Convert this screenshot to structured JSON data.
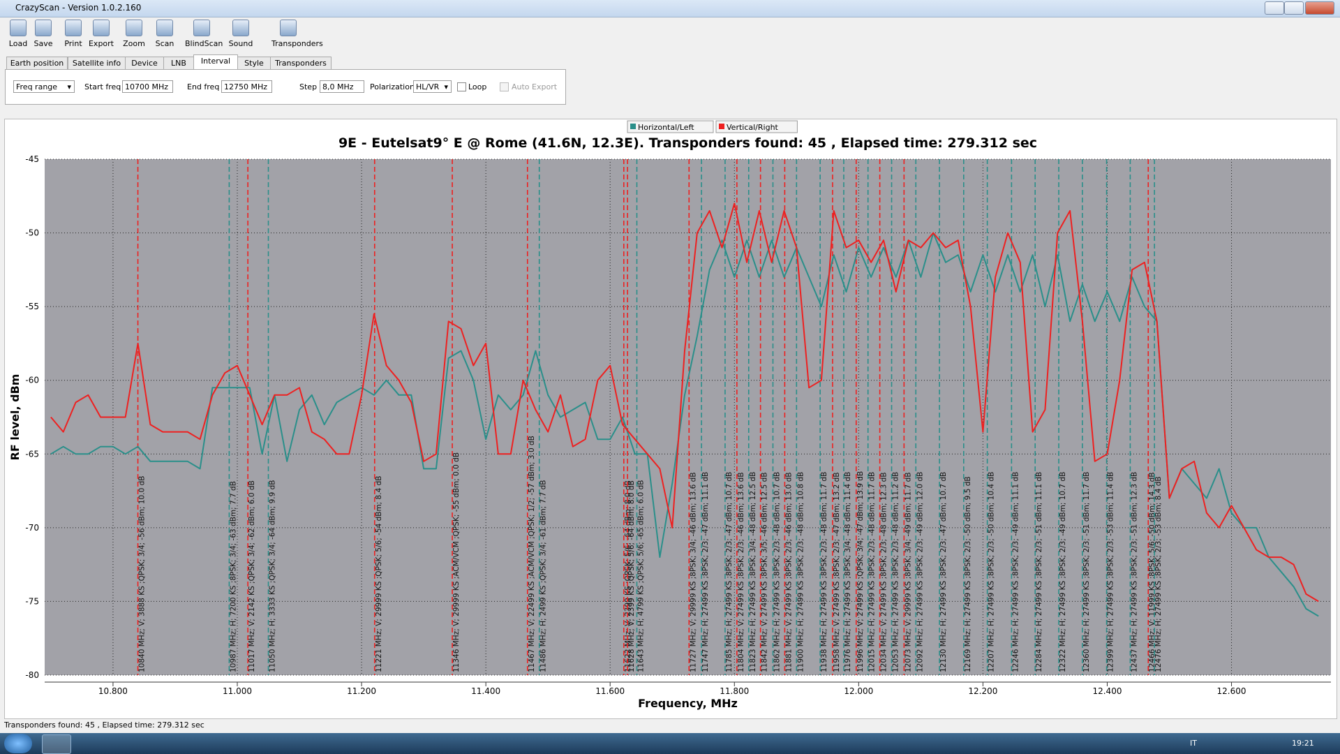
{
  "window": {
    "title": "CrazyScan - Version 1.0.2.160"
  },
  "toolbar": [
    "Load",
    "Save",
    "Print",
    "Export",
    "Zoom",
    "Scan",
    "BlindScan",
    "Sound",
    "Transponders"
  ],
  "tabs": [
    "Earth position",
    "Satellite info",
    "Device",
    "LNB",
    "Interval",
    "Style",
    "Transponders"
  ],
  "active_tab": 4,
  "interval": {
    "mode": "Freq range",
    "start_label": "Start freq",
    "start_value": "10700 MHz",
    "end_label": "End freq",
    "end_value": "12750 MHz",
    "step_label": "Step",
    "step_value": "8,0 MHz",
    "pol_label": "Polarization",
    "pol_value": "HL/VR",
    "loop": "Loop",
    "auto_export": "Auto Export"
  },
  "chart_data": {
    "type": "line",
    "title": "9E - Eutelsat9° E  @ Rome (41.6N, 12.3E). Transponders found: 45 , Elapsed time: 279.312 sec",
    "x_label": "Frequency, MHz",
    "y_label": "RF level, dBm",
    "legend": "top",
    "grid": true,
    "xlim": [
      10.69,
      12.76
    ],
    "ylim": [
      -80,
      -45
    ],
    "xticks": [
      {
        "value": 10.8,
        "label": "10.800"
      },
      {
        "value": 11.0,
        "label": "11.000"
      },
      {
        "value": 11.2,
        "label": "11.200"
      },
      {
        "value": 11.4,
        "label": "11.400"
      },
      {
        "value": 11.6,
        "label": "11.600"
      },
      {
        "value": 11.8,
        "label": "11.800"
      },
      {
        "value": 12.0,
        "label": "12.000"
      },
      {
        "value": 12.2,
        "label": "12.200"
      },
      {
        "value": 12.4,
        "label": "12.400"
      },
      {
        "value": 12.6,
        "label": "12.600"
      }
    ],
    "yticks": [
      -45,
      -50,
      -55,
      -60,
      -65,
      -70,
      -75,
      -80
    ],
    "x": [
      10.7,
      10.72,
      10.74,
      10.76,
      10.78,
      10.8,
      10.82,
      10.84,
      10.86,
      10.88,
      10.9,
      10.92,
      10.94,
      10.96,
      10.98,
      11.0,
      11.02,
      11.04,
      11.06,
      11.08,
      11.1,
      11.12,
      11.14,
      11.16,
      11.18,
      11.2,
      11.22,
      11.24,
      11.26,
      11.28,
      11.3,
      11.32,
      11.34,
      11.36,
      11.38,
      11.4,
      11.42,
      11.44,
      11.46,
      11.48,
      11.5,
      11.52,
      11.54,
      11.56,
      11.58,
      11.6,
      11.62,
      11.64,
      11.66,
      11.68,
      11.7,
      11.72,
      11.74,
      11.76,
      11.78,
      11.8,
      11.82,
      11.84,
      11.86,
      11.88,
      11.9,
      11.92,
      11.94,
      11.96,
      11.98,
      12.0,
      12.02,
      12.04,
      12.06,
      12.08,
      12.1,
      12.12,
      12.14,
      12.16,
      12.18,
      12.2,
      12.22,
      12.24,
      12.26,
      12.28,
      12.3,
      12.32,
      12.34,
      12.36,
      12.38,
      12.4,
      12.42,
      12.44,
      12.46,
      12.48,
      12.5,
      12.52,
      12.54,
      12.56,
      12.58,
      12.6,
      12.62,
      12.64,
      12.66,
      12.68,
      12.7,
      12.72,
      12.74
    ],
    "series": [
      {
        "name": "Horizontal/Left",
        "color": "#2a8f8a",
        "values": [
          -65,
          -64.5,
          -65,
          -65,
          -64.5,
          -64.5,
          -65,
          -64.5,
          -65.5,
          -65.5,
          -65.5,
          -65.5,
          -66,
          -60.5,
          -60.5,
          -60.5,
          -60.5,
          -65,
          -61,
          -65.5,
          -62,
          -61,
          -63,
          -61.5,
          -61,
          -60.5,
          -61,
          -60,
          -61,
          -61,
          -66,
          -66,
          -58.5,
          -58,
          -60,
          -64,
          -61,
          -62,
          -61,
          -58,
          -61,
          -62.5,
          -62,
          -61.5,
          -64,
          -64,
          -62.5,
          -65,
          -65,
          -72,
          -67,
          -61,
          -57,
          -52.5,
          -50.5,
          -53,
          -50.5,
          -53,
          -50.5,
          -53,
          -51,
          -53,
          -55,
          -51.5,
          -54,
          -51,
          -53,
          -51,
          -53,
          -50.5,
          -53,
          -50,
          -52,
          -51.5,
          -54,
          -51.5,
          -54,
          -51.5,
          -54,
          -51.5,
          -55,
          -51.5,
          -56,
          -53.5,
          -56,
          -54,
          -56,
          -53,
          -55,
          -56,
          -68,
          -66,
          -67,
          -68,
          -66,
          -69,
          -70,
          -70,
          -72,
          -73,
          -74,
          -75.5,
          -76
        ]
      },
      {
        "name": "Vertical/Right",
        "color": "#ee2020",
        "values": [
          -62.5,
          -63.5,
          -61.5,
          -61,
          -62.5,
          -62.5,
          -62.5,
          -57.5,
          -63,
          -63.5,
          -63.5,
          -63.5,
          -64,
          -61,
          -59.5,
          -59,
          -61,
          -63,
          -61,
          -61,
          -60.5,
          -63.5,
          -64,
          -65,
          -65,
          -61,
          -55.5,
          -59,
          -60,
          -61.5,
          -65.5,
          -65,
          -56,
          -56.5,
          -59,
          -57.5,
          -65,
          -65,
          -60,
          -62,
          -63.5,
          -61,
          -64.5,
          -64,
          -60,
          -59,
          -63,
          -64,
          -65,
          -66,
          -70,
          -58,
          -50,
          -48.5,
          -51,
          -48,
          -52,
          -48.5,
          -52,
          -48.5,
          -51,
          -60.5,
          -60,
          -48.5,
          -51,
          -50.5,
          -52,
          -50.5,
          -54,
          -50.5,
          -51,
          -50,
          -51,
          -50.5,
          -55,
          -63.5,
          -53,
          -50,
          -52,
          -63.5,
          -62,
          -50,
          -48.5,
          -56,
          -65.5,
          -65,
          -60,
          -52.5,
          -52,
          -56,
          -68,
          -66,
          -65.5,
          -69,
          -70,
          -68.5,
          -70,
          -71.5,
          -72,
          -72,
          -72.5,
          -74.5,
          -75
        ]
      }
    ],
    "transponders": [
      {
        "freq": 10.84,
        "color": "#ee2020",
        "label": "10840 MHz; V; 3888 KS ;QPSK; 3/4; -56 dBm; 10.0 dB"
      },
      {
        "freq": 10.987,
        "color": "#2a8f8a",
        "label": "10987 MHz; H; 7200 KS ;8PSK; 3/4; -63 dBm; 7.7 dB"
      },
      {
        "freq": 11.017,
        "color": "#ee2020",
        "label": "11017 MHz; V; 2142 KS ;QPSK; 3/4; -62 dBm; 6.0 dB"
      },
      {
        "freq": 11.05,
        "color": "#2a8f8a",
        "label": "11050 MHz; H; 3333 KS ;QPSK; 3/4; -64 dBm; 9.9 dB"
      },
      {
        "freq": 11.221,
        "color": "#ee2020",
        "label": "11221 MHz; V; 29999 KS ;QPSK; 5/6; -54 dBm; 8.4 dB"
      },
      {
        "freq": 11.346,
        "color": "#ee2020",
        "label": "11346 MHz; V; 29999 KS ;ACM/VCM ;QPSK; -55 dBm; 0.0 dB"
      },
      {
        "freq": 11.467,
        "color": "#ee2020",
        "label": "11467 MHz; V; 22499 KS ;ACM/VCM ;QPSK; 1/2; -57 dBm; 3.0 dB"
      },
      {
        "freq": 11.486,
        "color": "#2a8f8a",
        "label": "11486 MHz; H; 2499 KS ;QPSK; 3/4; -61 dBm; 7.7 dB"
      },
      {
        "freq": 11.622,
        "color": "#ee2020",
        "label": "11622 MHz; V; 2399 KS ;QPSK; 5/6; -64 dBm; 8.0 dB"
      },
      {
        "freq": 11.628,
        "color": "#ee2020",
        "label": "11628 MHz; V; 2399 KS ;QPSK; 5/6; -64 dBm; 8.0 dB"
      },
      {
        "freq": 11.643,
        "color": "#2a8f8a",
        "label": "11643 MHz; H; 4799 KS ;QPSK; 5/6; -65 dBm; 6.0 dB"
      },
      {
        "freq": 11.727,
        "color": "#ee2020",
        "label": "11727 MHz; V; 29999 KS ;8PSK; 3/4; -46 dBm; 13.6 dB"
      },
      {
        "freq": 11.747,
        "color": "#2a8f8a",
        "label": "11747 MHz; H; 27499 KS ;8PSK; 2/3; -47 dBm; 11.1 dB"
      },
      {
        "freq": 11.785,
        "color": "#2a8f8a",
        "label": "11785 MHz; H; 27499 KS ;8PSK; 2/3; -47 dBm; 10.7 dB"
      },
      {
        "freq": 11.804,
        "color": "#ee2020",
        "label": "11804 MHz; V; 27499 KS ;8PSK; 2/3; -46 dBm; 13.6 dB"
      },
      {
        "freq": 11.823,
        "color": "#2a8f8a",
        "label": "11823 MHz; H; 27499 KS ;8PSK; 3/4; -48 dBm; 12.5 dB"
      },
      {
        "freq": 11.842,
        "color": "#ee2020",
        "label": "11842 MHz; V; 27499 KS ;8PSK; 3/5; -46 dBm; 12.5 dB"
      },
      {
        "freq": 11.862,
        "color": "#2a8f8a",
        "label": "11862 MHz; H; 27499 KS ;8PSK; 2/3; -48 dBm; 10.7 dB"
      },
      {
        "freq": 11.881,
        "color": "#ee2020",
        "label": "11881 MHz; V; 27499 KS ;8PSK; 2/3; -46 dBm; 13.0 dB"
      },
      {
        "freq": 11.9,
        "color": "#2a8f8a",
        "label": "11900 MHz; H; 27499 KS ;8PSK; 2/3; -48 dBm; 10.8 dB"
      },
      {
        "freq": 11.938,
        "color": "#2a8f8a",
        "label": "11938 MHz; H; 27499 KS ;8PSK; 2/3; -48 dBm; 11.7 dB"
      },
      {
        "freq": 11.958,
        "color": "#ee2020",
        "label": "11958 MHz; V; 27499 KS ;8PSK; 2/3; -47 dBm; 13.2 dB"
      },
      {
        "freq": 11.976,
        "color": "#2a8f8a",
        "label": "11976 MHz; H; 27499 KS ;8PSK; 3/4; -48 dBm; 11.4 dB"
      },
      {
        "freq": 11.996,
        "color": "#ee2020",
        "label": "11996 MHz; V; 27499 KS ;QPSK; 3/4; -47 dBm; 13.9 dB"
      },
      {
        "freq": 12.015,
        "color": "#2a8f8a",
        "label": "12015 MHz; H; 27499 KS ;8PSK; 2/3; -48 dBm; 11.7 dB"
      },
      {
        "freq": 12.034,
        "color": "#ee2020",
        "label": "12034 MHz; V; 27499 KS ;8PSK; 2/3; -48 dBm; 12.3 dB"
      },
      {
        "freq": 12.053,
        "color": "#2a8f8a",
        "label": "12053 MHz; H; 27499 KS ;8PSK; 2/3; -48 dBm; 11.2 dB"
      },
      {
        "freq": 12.073,
        "color": "#ee2020",
        "label": "12073 MHz; V; 29999 KS ;8PSK; 3/4; -49 dBm; 11.7 dB"
      },
      {
        "freq": 12.092,
        "color": "#2a8f8a",
        "label": "12092 MHz; H; 27499 KS ;8PSK; 2/3; -49 dBm; 12.0 dB"
      },
      {
        "freq": 12.13,
        "color": "#2a8f8a",
        "label": "12130 MHz; H; 27499 KS ;8PSK; 2/3; -47 dBm; 10.7 dB"
      },
      {
        "freq": 12.169,
        "color": "#2a8f8a",
        "label": "12169 MHz; H; 27499 KS ;8PSK; 2/3; -50 dBm; 9.5 dB"
      },
      {
        "freq": 12.207,
        "color": "#2a8f8a",
        "label": "12207 MHz; H; 27499 KS ;8PSK; 2/3; -50 dBm; 10.4 dB"
      },
      {
        "freq": 12.246,
        "color": "#2a8f8a",
        "label": "12246 MHz; H; 27499 KS ;8PSK; 2/3; -49 dBm; 11.1 dB"
      },
      {
        "freq": 12.284,
        "color": "#2a8f8a",
        "label": "12284 MHz; H; 27499 KS ;8PSK; 2/3; -51 dBm; 11.1 dB"
      },
      {
        "freq": 12.322,
        "color": "#2a8f8a",
        "label": "12322 MHz; H; 27499 KS ;8PSK; 2/3; -49 dBm; 10.7 dB"
      },
      {
        "freq": 12.36,
        "color": "#2a8f8a",
        "label": "12360 MHz; H; 27499 KS ;8PSK; 2/3; -51 dBm; 11.7 dB"
      },
      {
        "freq": 12.399,
        "color": "#2a8f8a",
        "label": "12399 MHz; H; 27499 KS ;8PSK; 2/3; -53 dBm; 11.4 dB"
      },
      {
        "freq": 12.437,
        "color": "#2a8f8a",
        "label": "12437 MHz; H; 27499 KS ;8PSK; 2/3; -51 dBm; 12.3 dB"
      },
      {
        "freq": 12.466,
        "color": "#ee2020",
        "label": "12466 MHz; V; 11999 KS ;8PSK; 5/6; -50 dBm; 14.3 dB"
      },
      {
        "freq": 12.476,
        "color": "#2a8f8a",
        "label": "12476 MHz; H; 27499 KS ;8PSK; 2/3; -53 dBm; 8.4 dB"
      }
    ]
  },
  "status": "Transponders found: 45 , Elapsed time: 279.312 sec",
  "taskbar": {
    "language": "IT",
    "clock": "19:21"
  }
}
